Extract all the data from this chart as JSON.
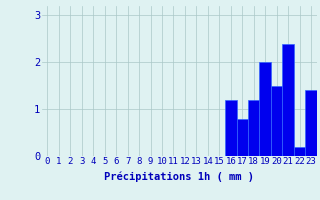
{
  "hours": [
    0,
    1,
    2,
    3,
    4,
    5,
    6,
    7,
    8,
    9,
    10,
    11,
    12,
    13,
    14,
    15,
    16,
    17,
    18,
    19,
    20,
    21,
    22,
    23
  ],
  "values": [
    0,
    0,
    0,
    0,
    0,
    0,
    0,
    0,
    0,
    0,
    0,
    0,
    0,
    0,
    0,
    0,
    1.2,
    0.8,
    1.2,
    2.0,
    1.5,
    2.4,
    0.2,
    1.4
  ],
  "bar_color": "#0000ee",
  "bar_edge_color": "#3366ff",
  "background_color": "#dff2f2",
  "grid_color": "#aac8c8",
  "text_color": "#0000bb",
  "xlabel": "Précipitations 1h ( mm )",
  "ylim": [
    0,
    3.2
  ],
  "yticks": [
    0,
    1,
    2,
    3
  ],
  "xlabel_fontsize": 7.5,
  "tick_fontsize": 6.5
}
